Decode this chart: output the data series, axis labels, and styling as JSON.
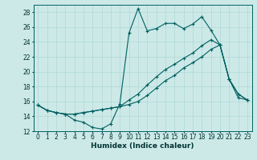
{
  "xlabel": "Humidex (Indice chaleur)",
  "xlim": [
    -0.5,
    23.5
  ],
  "ylim": [
    12,
    29
  ],
  "yticks": [
    12,
    14,
    16,
    18,
    20,
    22,
    24,
    26,
    28
  ],
  "xticks": [
    0,
    1,
    2,
    3,
    4,
    5,
    6,
    7,
    8,
    9,
    10,
    11,
    12,
    13,
    14,
    15,
    16,
    17,
    18,
    19,
    20,
    21,
    22,
    23
  ],
  "bg_color": "#cce9e8",
  "line_color": "#006060",
  "grid_color": "#add8d6",
  "line1_x": [
    0,
    1,
    2,
    3,
    4,
    5,
    6,
    7,
    8,
    9,
    10,
    11,
    12,
    13,
    14,
    15,
    16,
    17,
    18,
    19,
    20,
    21,
    22,
    23
  ],
  "line1_y": [
    15.5,
    14.8,
    14.5,
    14.3,
    13.5,
    13.2,
    12.5,
    12.3,
    13.0,
    15.7,
    25.2,
    28.5,
    25.5,
    25.8,
    26.5,
    26.5,
    25.8,
    26.4,
    27.4,
    25.6,
    23.6,
    19.0,
    17.0,
    16.2
  ],
  "line2_x": [
    0,
    1,
    2,
    3,
    4,
    5,
    6,
    7,
    8,
    9,
    10,
    11,
    12,
    13,
    14,
    15,
    16,
    17,
    18,
    19,
    20,
    21,
    22,
    23
  ],
  "line2_y": [
    15.5,
    14.8,
    14.5,
    14.3,
    14.3,
    14.5,
    14.7,
    14.9,
    15.1,
    15.3,
    16.2,
    17.0,
    18.2,
    19.3,
    20.3,
    21.0,
    21.8,
    22.5,
    23.5,
    24.3,
    23.6,
    19.0,
    17.0,
    16.2
  ],
  "line3_x": [
    0,
    1,
    2,
    3,
    4,
    5,
    6,
    7,
    8,
    9,
    10,
    11,
    12,
    13,
    14,
    15,
    16,
    17,
    18,
    19,
    20,
    21,
    22,
    23
  ],
  "line3_y": [
    15.5,
    14.8,
    14.5,
    14.3,
    14.3,
    14.5,
    14.7,
    14.9,
    15.1,
    15.3,
    15.6,
    16.0,
    16.8,
    17.8,
    18.8,
    19.5,
    20.5,
    21.2,
    22.0,
    23.0,
    23.6,
    19.0,
    16.5,
    16.2
  ]
}
